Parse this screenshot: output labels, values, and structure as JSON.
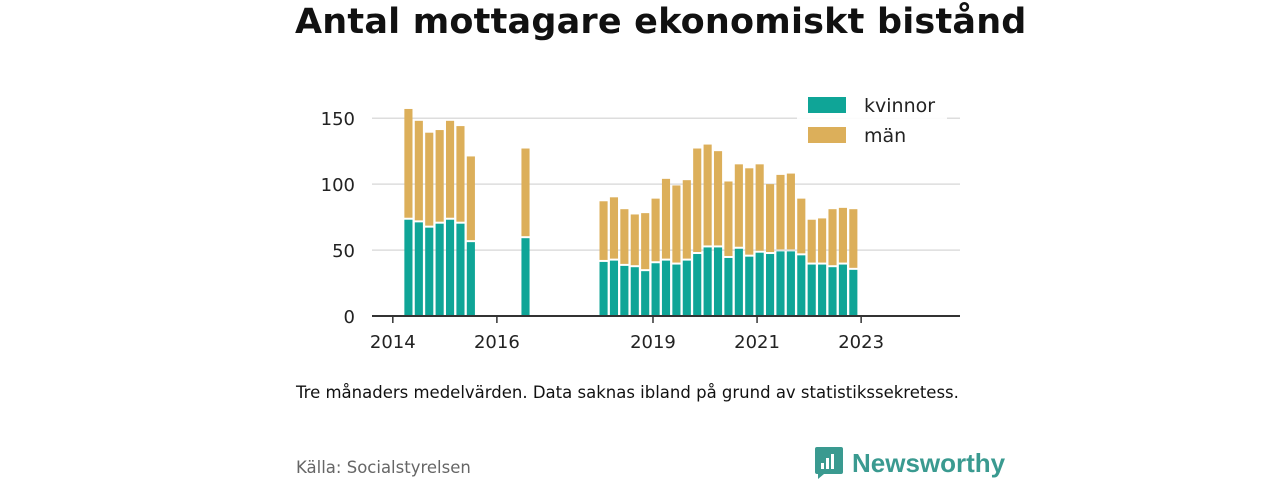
{
  "title": "Antal mottagare ekonomiskt bistånd",
  "note": "Tre månaders medelvärden. Data saknas ibland på grund av statistikssekretess.",
  "source": "Källa: Socialstyrelsen",
  "brand": {
    "name": "Newsworthy",
    "icon": "newsworthy-logo-icon"
  },
  "colors": {
    "kvinnor": "#0fa597",
    "man": "#dcaf5a",
    "grid": "#dddddd",
    "axis": "#333333"
  },
  "chart_data": {
    "type": "bar",
    "stacked": true,
    "x_unit": "year",
    "x_ticks": [
      "2014",
      "2016",
      "2019",
      "2021",
      "2023"
    ],
    "y_ticks": [
      0,
      50,
      100,
      150
    ],
    "ylim": [
      0,
      160
    ],
    "xlim": [
      2013.6,
      2024.9
    ],
    "grid": true,
    "legend_position": "top-right",
    "series": [
      {
        "name": "kvinnor",
        "values": [
          73,
          71,
          67,
          70,
          73,
          70,
          56,
          59,
          41,
          42,
          38,
          37,
          34,
          40,
          42,
          39,
          42,
          47,
          52,
          52,
          44,
          51,
          45,
          48,
          47,
          49,
          49,
          46,
          39,
          39,
          37,
          39,
          35
        ]
      },
      {
        "name": "män",
        "values": [
          84,
          77,
          72,
          71,
          75,
          74,
          65,
          68,
          46,
          48,
          43,
          40,
          44,
          49,
          62,
          60,
          61,
          80,
          78,
          73,
          58,
          64,
          67,
          67,
          53,
          58,
          59,
          43,
          34,
          35,
          44,
          43,
          46
        ]
      }
    ],
    "x": [
      2014.3,
      2014.5,
      2014.7,
      2014.9,
      2015.1,
      2015.3,
      2015.5,
      2016.55,
      2018.05,
      2018.25,
      2018.45,
      2018.65,
      2018.85,
      2019.05,
      2019.25,
      2019.45,
      2019.65,
      2019.85,
      2020.05,
      2020.25,
      2020.45,
      2020.65,
      2020.85,
      2021.05,
      2021.25,
      2021.45,
      2021.65,
      2021.85,
      2022.05,
      2022.25,
      2022.45,
      2022.65,
      2022.85
    ]
  }
}
